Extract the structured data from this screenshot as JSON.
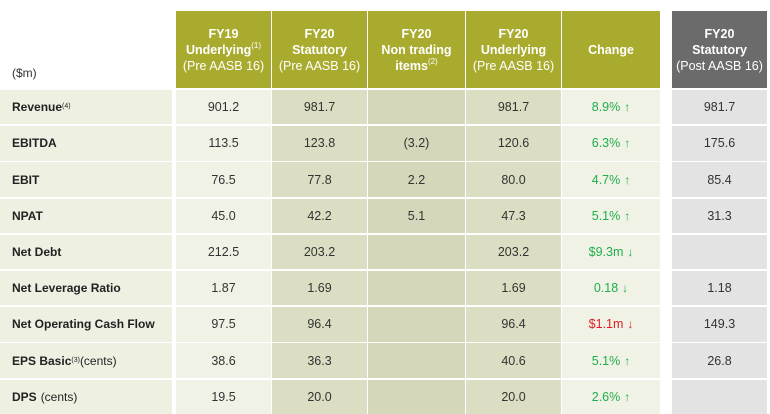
{
  "unit_label": "($m)",
  "columns": [
    {
      "l1": "FY19",
      "l2": "Underlying",
      "l2_sup": "(1)",
      "l3": "(Pre AASB 16)"
    },
    {
      "l1": "FY20",
      "l2": "Statutory",
      "l2_sup": "",
      "l3": "(Pre AASB 16)"
    },
    {
      "l1": "FY20",
      "l2": "Non trading",
      "l2_sup": "",
      "l3": "items",
      "l3_sup": "(2)"
    },
    {
      "l1": "FY20",
      "l2": "Underlying",
      "l2_sup": "",
      "l3": "(Pre AASB 16)"
    },
    {
      "l1": "Change",
      "l2": "",
      "l2_sup": "",
      "l3": ""
    },
    {
      "l1": "FY20",
      "l2": "Statutory",
      "l2_sup": "",
      "l3": "(Post AASB 16)"
    }
  ],
  "rows": [
    {
      "label": "Revenue",
      "label_sup": "(4)",
      "label_paren": "",
      "fy19": "901.2",
      "fy20_stat": "981.7",
      "non_trading": "",
      "fy20_und": "981.7",
      "change": "8.9%",
      "change_dir": "up",
      "change_color": "green",
      "fy20_post": "981.7"
    },
    {
      "label": "EBITDA",
      "label_sup": "",
      "label_paren": "",
      "fy19": "113.5",
      "fy20_stat": "123.8",
      "non_trading": "(3.2)",
      "fy20_und": "120.6",
      "change": "6.3%",
      "change_dir": "up",
      "change_color": "green",
      "fy20_post": "175.6"
    },
    {
      "label": "EBIT",
      "label_sup": "",
      "label_paren": "",
      "fy19": "76.5",
      "fy20_stat": "77.8",
      "non_trading": "2.2",
      "fy20_und": "80.0",
      "change": "4.7%",
      "change_dir": "up",
      "change_color": "green",
      "fy20_post": "85.4"
    },
    {
      "label": "NPAT",
      "label_sup": "",
      "label_paren": "",
      "fy19": "45.0",
      "fy20_stat": "42.2",
      "non_trading": "5.1",
      "fy20_und": "47.3",
      "change": "5.1%",
      "change_dir": "up",
      "change_color": "green",
      "fy20_post": "31.3"
    },
    {
      "label": "Net Debt",
      "label_sup": "",
      "label_paren": "",
      "fy19": "212.5",
      "fy20_stat": "203.2",
      "non_trading": "",
      "fy20_und": "203.2",
      "change": "$9.3m",
      "change_dir": "down",
      "change_color": "green",
      "fy20_post": ""
    },
    {
      "label": "Net Leverage Ratio",
      "label_sup": "",
      "label_paren": "",
      "fy19": "1.87",
      "fy20_stat": "1.69",
      "non_trading": "",
      "fy20_und": "1.69",
      "change": "0.18",
      "change_dir": "down",
      "change_color": "green",
      "fy20_post": "1.18"
    },
    {
      "label": "Net Operating Cash Flow",
      "label_sup": "",
      "label_paren": "",
      "fy19": "97.5",
      "fy20_stat": "96.4",
      "non_trading": "",
      "fy20_und": "96.4",
      "change": "$1.1m",
      "change_dir": "down",
      "change_color": "red",
      "fy20_post": "149.3"
    },
    {
      "label": "EPS Basic",
      "label_sup": "(3)",
      "label_paren": "(cents)",
      "fy19": "38.6",
      "fy20_stat": "36.3",
      "non_trading": "",
      "fy20_und": "40.6",
      "change": "5.1%",
      "change_dir": "up",
      "change_color": "green",
      "fy20_post": "26.8"
    },
    {
      "label": "DPS",
      "label_sup": "",
      "label_paren": "(cents)",
      "fy19": "19.5",
      "fy20_stat": "20.0",
      "non_trading": "",
      "fy20_und": "20.0",
      "change": "2.6%",
      "change_dir": "up",
      "change_color": "green",
      "fy20_post": ""
    }
  ],
  "colors": {
    "header_olive": "#a9ab2e",
    "header_grey": "#6b6b6b",
    "up_green": "#1fae4a",
    "down_red": "#e01b24"
  }
}
